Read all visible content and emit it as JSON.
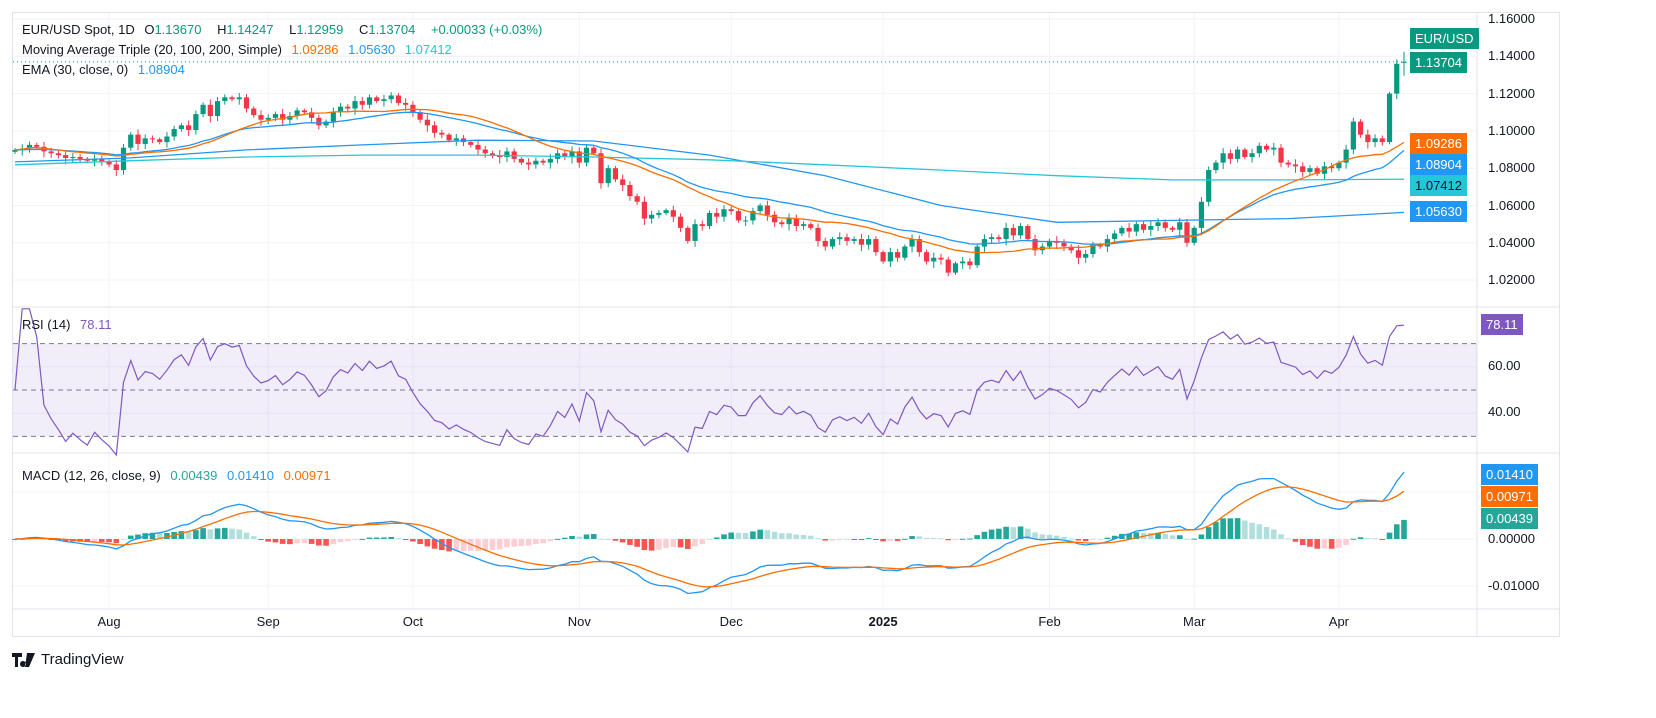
{
  "header": {
    "symbol": "EUR/USD Spot, 1D",
    "open_label": "O",
    "open": "1.13670",
    "high_label": "H",
    "high": "1.14247",
    "low_label": "L",
    "low": "1.12959",
    "close_label": "C",
    "close": "1.13704",
    "change": "+0.00033 (+0.03%)"
  },
  "ma_triple": {
    "label": "Moving Average Triple (20, 100, 200, Simple)",
    "ma20": "1.09286",
    "ma100": "1.05630",
    "ma200": "1.07412"
  },
  "ema": {
    "label": "EMA (30, close, 0)",
    "value": "1.08904"
  },
  "rsi": {
    "label": "RSI (14)",
    "value": "78.11",
    "ticks": [
      "60.00",
      "40.00"
    ]
  },
  "macd": {
    "label": "MACD (12, 26, close, 9)",
    "hist": "0.00439",
    "macd": "0.01410",
    "signal": "0.00971",
    "ticks": [
      "0.00000",
      "-0.01000"
    ]
  },
  "price_axis": {
    "ticks": [
      "1.16000",
      "1.14000",
      "1.12000",
      "1.10000",
      "1.08000",
      "1.06000",
      "1.04000",
      "1.02000"
    ],
    "symbol_tag": "EUR/USD",
    "last_price": "1.13704"
  },
  "time_axis": [
    "Aug",
    "Sep",
    "Oct",
    "Nov",
    "Dec",
    "2025",
    "Feb",
    "Mar",
    "Apr"
  ],
  "brand": "TradingView",
  "colors": {
    "up": "#089981",
    "down": "#f23645",
    "ma20": "#ff6d00",
    "ma100": "#2196f3",
    "ma200": "#26c6da",
    "ema": "#2196f3",
    "rsi": "#7e57c2",
    "macd": "#2196f3",
    "signal": "#ff6d00",
    "hist_up": "#26a69a",
    "hist_up_weak": "#b2dfdb",
    "hist_down": "#ff5252",
    "hist_down_weak": "#ffcdd2"
  },
  "chart_data": {
    "type": "candlestick",
    "title": "EUR/USD Spot, 1D",
    "ylim": [
      1.015,
      1.163
    ],
    "time_tick_bar_index": [
      13,
      35,
      55,
      78,
      99,
      120,
      143,
      163,
      183
    ],
    "closes": [
      1.0898,
      1.0905,
      1.0925,
      1.0915,
      1.089,
      1.088,
      1.087,
      1.0855,
      1.086,
      1.085,
      1.084,
      1.085,
      1.0835,
      1.082,
      1.079,
      1.091,
      1.098,
      1.093,
      1.096,
      1.0955,
      1.094,
      1.097,
      1.101,
      1.103,
      1.1005,
      1.109,
      1.114,
      1.108,
      1.116,
      1.118,
      1.117,
      1.118,
      1.112,
      1.1085,
      1.106,
      1.107,
      1.109,
      1.106,
      1.108,
      1.111,
      1.11,
      1.107,
      1.103,
      1.105,
      1.11,
      1.113,
      1.112,
      1.116,
      1.114,
      1.118,
      1.116,
      1.117,
      1.119,
      1.115,
      1.114,
      1.11,
      1.106,
      1.103,
      1.099,
      1.098,
      1.095,
      1.096,
      1.094,
      1.0925,
      1.09,
      1.088,
      1.087,
      1.086,
      1.089,
      1.085,
      1.083,
      1.082,
      1.084,
      1.083,
      1.085,
      1.088,
      1.086,
      1.089,
      1.083,
      1.091,
      1.088,
      1.072,
      1.08,
      1.074,
      1.071,
      1.065,
      1.062,
      1.053,
      1.055,
      1.056,
      1.0575,
      1.054,
      1.048,
      1.041,
      1.05,
      1.049,
      1.056,
      1.054,
      1.058,
      1.057,
      1.052,
      1.052,
      1.057,
      1.06,
      1.055,
      1.051,
      1.05,
      1.053,
      1.049,
      1.05,
      1.048,
      1.041,
      1.038,
      1.042,
      1.043,
      1.041,
      1.042,
      1.039,
      1.042,
      1.035,
      1.03,
      1.035,
      1.032,
      1.038,
      1.042,
      1.035,
      1.03,
      1.032,
      1.031,
      1.024,
      1.029,
      1.03,
      1.028,
      1.038,
      1.042,
      1.043,
      1.042,
      1.048,
      1.044,
      1.049,
      1.042,
      1.036,
      1.038,
      1.041,
      1.04,
      1.038,
      1.036,
      1.032,
      1.034,
      1.039,
      1.038,
      1.042,
      1.045,
      1.048,
      1.046,
      1.05,
      1.047,
      1.049,
      1.051,
      1.048,
      1.047,
      1.051,
      1.04,
      1.048,
      1.062,
      1.079,
      1.083,
      1.088,
      1.085,
      1.09,
      1.086,
      1.088,
      1.092,
      1.09,
      1.091,
      1.083,
      1.082,
      1.081,
      1.078,
      1.08,
      1.077,
      1.081,
      1.08,
      1.083,
      1.09,
      1.105,
      1.098,
      1.094,
      1.096,
      1.094,
      1.12,
      1.136,
      1.13704
    ],
    "sma100_every16_bars": [
      1.0834,
      1.0855,
      1.0898,
      1.0925,
      1.095,
      1.0946,
      1.087,
      1.076,
      1.06,
      1.051,
      1.052,
      1.053,
      1.0563
    ],
    "sma200_every16_bars": [
      1.0818,
      1.084,
      1.086,
      1.087,
      1.087,
      1.086,
      1.0845,
      1.0818,
      1.079,
      1.076,
      1.0737,
      1.0737,
      1.0741
    ],
    "rsi_levels": [
      70,
      50,
      30
    ],
    "rsi_ylim": [
      20,
      85
    ],
    "macd_ylim": [
      -0.0125,
      0.0185
    ]
  }
}
